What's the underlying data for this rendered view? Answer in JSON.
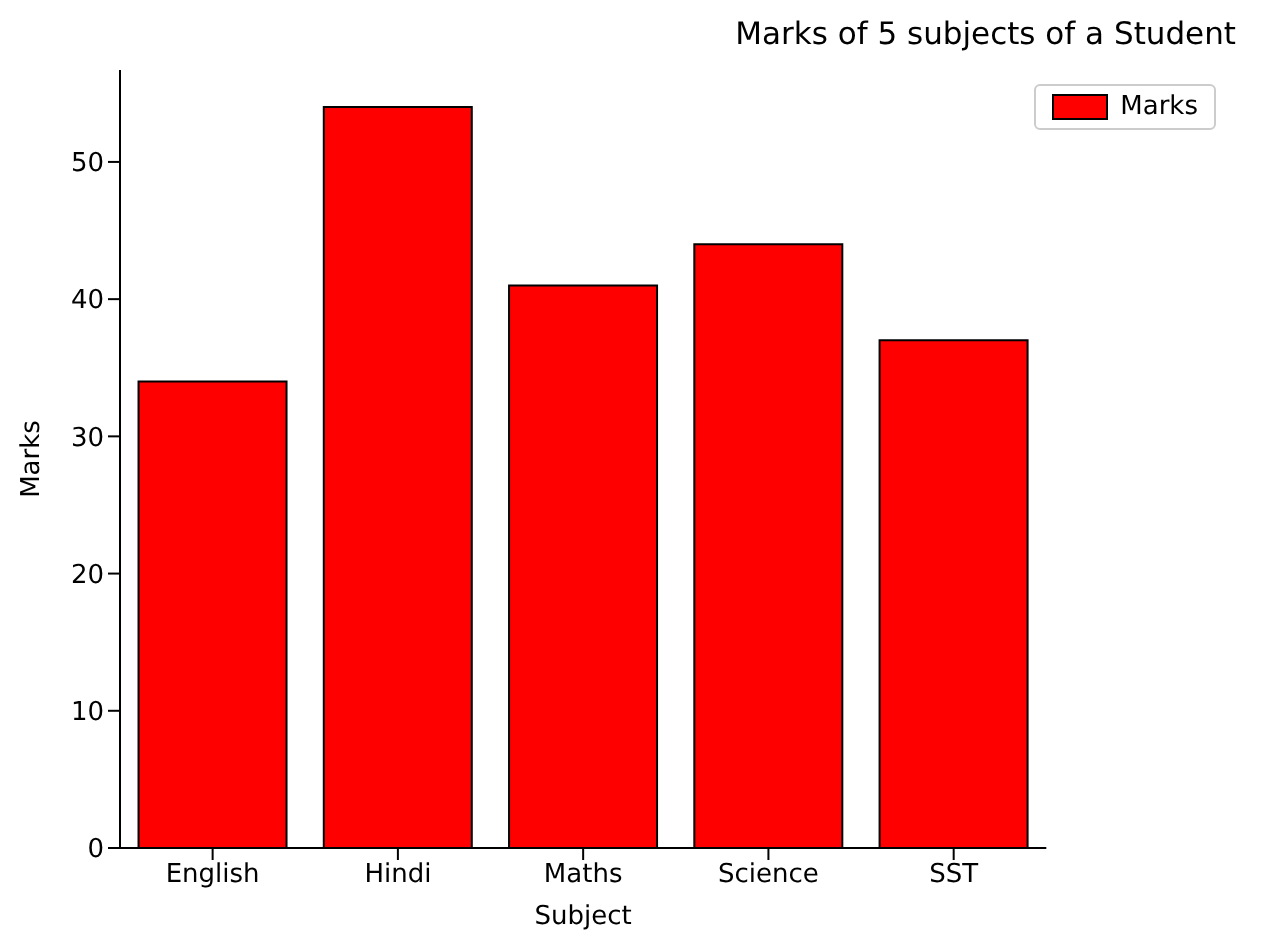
{
  "chart_data": {
    "type": "bar",
    "title": "Marks of 5 subjects of a Student",
    "xlabel": "Subject",
    "ylabel": "Marks",
    "categories": [
      "English",
      "Hindi",
      "Maths",
      "Science",
      "SST"
    ],
    "series": [
      {
        "name": "Marks",
        "color": "#ff0000",
        "values": [
          34,
          54,
          41,
          44,
          37
        ]
      }
    ],
    "ylim": [
      0,
      56.7
    ],
    "yticks": [
      0,
      10,
      20,
      30,
      40,
      50
    ],
    "grid": false,
    "legend": "top right"
  }
}
